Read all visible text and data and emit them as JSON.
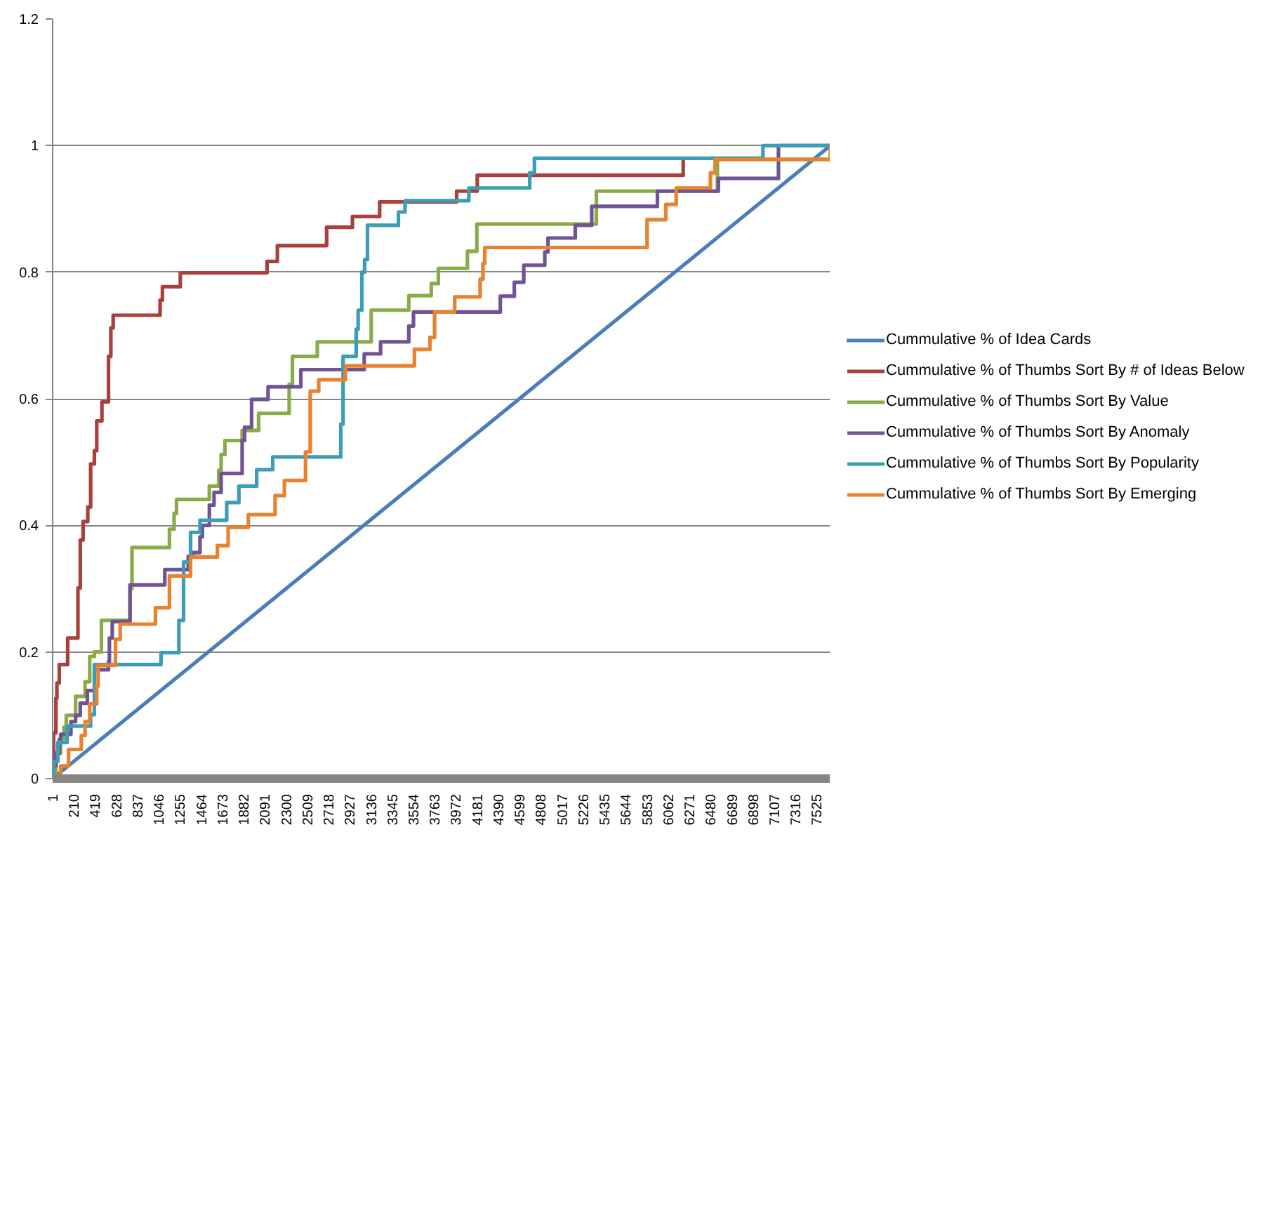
{
  "chart_data": {
    "type": "step",
    "xlim": [
      1,
      7660
    ],
    "ylim": [
      0,
      1.2
    ],
    "xticks": [
      1,
      210,
      419,
      628,
      837,
      1046,
      1255,
      1464,
      1673,
      1882,
      2091,
      2300,
      2509,
      2718,
      2927,
      3136,
      3345,
      3554,
      3763,
      3972,
      4181,
      4390,
      4599,
      4808,
      5017,
      5226,
      5435,
      5644,
      5853,
      6062,
      6271,
      6480,
      6689,
      6898,
      7107,
      7316,
      7525
    ],
    "yticks": [
      0,
      0.2,
      0.4,
      0.6,
      0.8,
      1,
      1.2
    ],
    "grid": "y",
    "legend": "right",
    "series": [
      {
        "name": "Cummulative % of Idea Cards",
        "color": "#4a7ebb",
        "type": "line",
        "x": [
          1,
          7660
        ],
        "values": [
          0,
          1
        ]
      },
      {
        "name": "Cummulative % of Thumbs Sort By # of Ideas Below",
        "color": "#a9403e",
        "x": [
          1,
          10,
          33,
          43,
          66,
          149,
          250,
          273,
          301,
          347,
          375,
          412,
          435,
          486,
          551,
          574,
          597,
          1059,
          1082,
          1258,
          2112,
          2214,
          2699,
          2953,
          3221,
          3979,
          4182,
          6210
        ],
        "values": [
          0,
          0.072,
          0.127,
          0.151,
          0.18,
          0.222,
          0.301,
          0.377,
          0.406,
          0.429,
          0.497,
          0.518,
          0.565,
          0.595,
          0.667,
          0.712,
          0.732,
          0.756,
          0.777,
          0.799,
          0.817,
          0.842,
          0.871,
          0.888,
          0.911,
          0.928,
          0.953,
          0.978
        ]
      },
      {
        "name": "Cummulative % of Thumbs Sort By Value",
        "color": "#8aac48",
        "x": [
          1,
          33,
          80,
          112,
          135,
          227,
          320,
          366,
          412,
          481,
          763,
          782,
          1151,
          1197,
          1221,
          1544,
          1636,
          1660,
          1697,
          1867,
          2029,
          2330,
          2362,
          2607,
          3138,
          3508,
          3729,
          3799,
          4085,
          4178,
          5355,
          6547,
          7660
        ],
        "values": [
          0,
          0.04,
          0.063,
          0.081,
          0.1,
          0.13,
          0.153,
          0.193,
          0.2,
          0.25,
          0.3,
          0.365,
          0.394,
          0.419,
          0.441,
          0.462,
          0.487,
          0.512,
          0.534,
          0.55,
          0.577,
          0.623,
          0.667,
          0.69,
          0.74,
          0.763,
          0.782,
          0.806,
          0.833,
          0.876,
          0.928,
          0.978,
          1
        ]
      },
      {
        "name": "Cummulative % of Thumbs Sort By Anomaly",
        "color": "#6f5394",
        "x": [
          1,
          10,
          33,
          66,
          80,
          181,
          227,
          273,
          343,
          412,
          551,
          560,
          588,
          763,
          1105,
          1336,
          1382,
          1452,
          1475,
          1544,
          1590,
          1660,
          1867,
          1891,
          1960,
          2122,
          2445,
          3069,
          3230,
          3508,
          3554,
          4409,
          4547,
          4640,
          4847,
          4879,
          5147,
          5309,
          5956,
          6556,
          7148,
          7660
        ],
        "values": [
          0,
          0.02,
          0.04,
          0.062,
          0.07,
          0.09,
          0.1,
          0.119,
          0.139,
          0.172,
          0.185,
          0.222,
          0.248,
          0.306,
          0.33,
          0.351,
          0.357,
          0.382,
          0.4,
          0.432,
          0.452,
          0.482,
          0.534,
          0.555,
          0.599,
          0.619,
          0.646,
          0.671,
          0.69,
          0.715,
          0.737,
          0.762,
          0.784,
          0.811,
          0.832,
          0.854,
          0.874,
          0.904,
          0.928,
          0.948,
          1,
          1
        ]
      },
      {
        "name": "Cummulative % of Thumbs Sort By Popularity",
        "color": "#3d9db7",
        "x": [
          1,
          10,
          52,
          144,
          375,
          412,
          1068,
          1244,
          1290,
          1359,
          1452,
          1715,
          1835,
          2010,
          2168,
          2838,
          2861,
          2990,
          3009,
          3046,
          3073,
          3101,
          3406,
          3471,
          4099,
          4699,
          4745,
          6995,
          7660
        ],
        "values": [
          0,
          0.027,
          0.057,
          0.083,
          0.101,
          0.18,
          0.199,
          0.25,
          0.342,
          0.389,
          0.408,
          0.436,
          0.462,
          0.488,
          0.508,
          0.56,
          0.667,
          0.71,
          0.74,
          0.8,
          0.82,
          0.874,
          0.895,
          0.913,
          0.933,
          0.957,
          0.98,
          1,
          1
        ]
      },
      {
        "name": "Cummulative % of Thumbs Sort By Emerging",
        "color": "#e8822f",
        "x": [
          1,
          80,
          158,
          283,
          320,
          366,
          435,
          449,
          620,
          666,
          1013,
          1151,
          1359,
          1623,
          1729,
          1928,
          2191,
          2283,
          2491,
          2537,
          2621,
          2884,
          3563,
          3716,
          3762,
          3960,
          4210,
          4238,
          4256,
          5854,
          6039,
          6141,
          6478,
          6524,
          7660
        ],
        "values": [
          0,
          0.02,
          0.046,
          0.068,
          0.09,
          0.118,
          0.146,
          0.179,
          0.22,
          0.244,
          0.27,
          0.32,
          0.35,
          0.368,
          0.397,
          0.417,
          0.447,
          0.471,
          0.516,
          0.612,
          0.63,
          0.652,
          0.678,
          0.697,
          0.737,
          0.761,
          0.789,
          0.814,
          0.839,
          0.883,
          0.907,
          0.933,
          0.957,
          0.978,
          1
        ]
      }
    ]
  }
}
